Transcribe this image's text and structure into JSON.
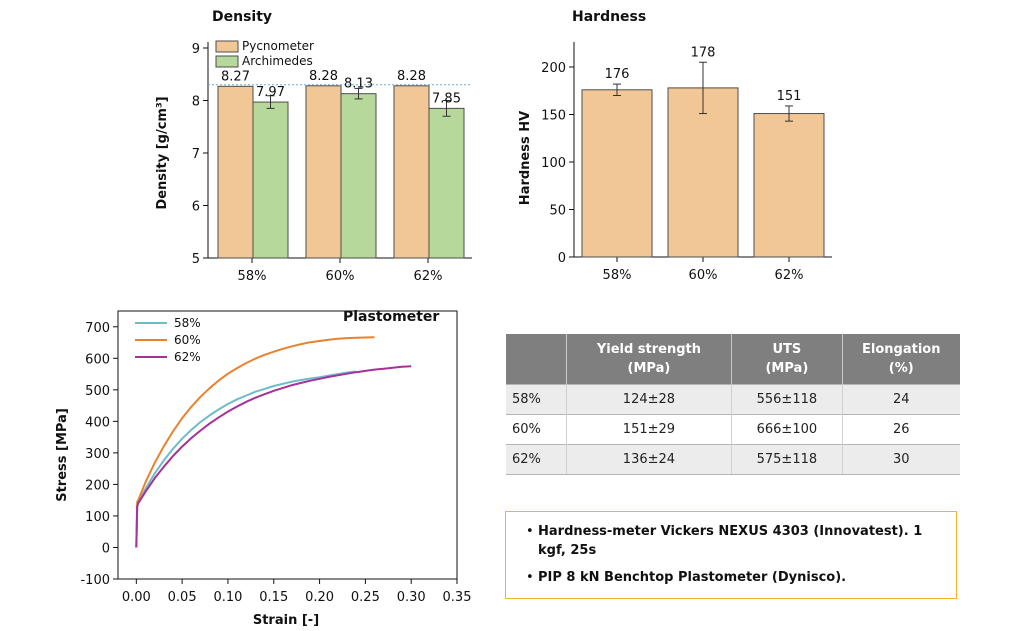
{
  "chart_data": [
    {
      "type": "bar",
      "title": "Density",
      "ylabel": "Density [g/cm³]",
      "categories": [
        "58%",
        "60%",
        "62%"
      ],
      "ylim": [
        5,
        9
      ],
      "yticks": [
        "5",
        "6",
        "7",
        "8",
        "9"
      ],
      "reference_line": 8.3,
      "legend_position": "top-left",
      "series": [
        {
          "name": "Pycnometer",
          "color": "#f1c796",
          "values": [
            8.27,
            8.28,
            8.28
          ],
          "labels": [
            "8.27",
            "8.28",
            "8.28"
          ],
          "errors": [
            0,
            0,
            0
          ]
        },
        {
          "name": "Archimedes",
          "color": "#b6d89a",
          "values": [
            7.97,
            8.13,
            7.85
          ],
          "labels": [
            "7.97",
            "8.13",
            "7.85"
          ],
          "errors": [
            0.12,
            0.1,
            0.15
          ]
        }
      ]
    },
    {
      "type": "bar",
      "title": "Hardness",
      "ylabel": "Hardness HV",
      "categories": [
        "58%",
        "60%",
        "62%"
      ],
      "ylim": [
        0,
        220
      ],
      "yticks": [
        "0",
        "50",
        "100",
        "150",
        "200"
      ],
      "series": [
        {
          "color": "#f1c796",
          "values": [
            176,
            178,
            151
          ],
          "labels": [
            "176",
            "178",
            "151"
          ],
          "errors": [
            6,
            27,
            8
          ]
        }
      ]
    },
    {
      "type": "line",
      "title": "Plastometer",
      "xlabel": "Strain [-]",
      "ylabel": "Stress [MPa]",
      "xlim": [
        -0.02,
        0.35
      ],
      "ylim": [
        -100,
        750
      ],
      "xticks": [
        "0.00",
        "0.05",
        "0.10",
        "0.15",
        "0.20",
        "0.25",
        "0.30",
        "0.35"
      ],
      "yticks": [
        "-100",
        "0",
        "100",
        "200",
        "300",
        "400",
        "500",
        "600",
        "700"
      ],
      "legend_position": "top-left",
      "series": [
        {
          "name": "58%",
          "color": "#6fbcc7",
          "x": [
            0,
            0.001,
            0.002,
            0.01,
            0.02,
            0.03,
            0.04,
            0.05,
            0.06,
            0.07,
            0.08,
            0.09,
            0.1,
            0.11,
            0.12,
            0.13,
            0.14,
            0.15,
            0.16,
            0.17,
            0.18,
            0.19,
            0.2,
            0.21,
            0.22,
            0.23,
            0.24
          ],
          "y": [
            0,
            130,
            140,
            186,
            234,
            276,
            313,
            345,
            373,
            398,
            419,
            438,
            455,
            470,
            482,
            494,
            503,
            512,
            519,
            526,
            531,
            536,
            540,
            545,
            550,
            555,
            558
          ]
        },
        {
          "name": "60%",
          "color": "#e8822e",
          "x": [
            0,
            0.001,
            0.002,
            0.01,
            0.02,
            0.03,
            0.04,
            0.05,
            0.06,
            0.07,
            0.08,
            0.09,
            0.1,
            0.11,
            0.12,
            0.13,
            0.14,
            0.15,
            0.16,
            0.17,
            0.18,
            0.19,
            0.2,
            0.21,
            0.22,
            0.23,
            0.24,
            0.25,
            0.26
          ],
          "y": [
            0,
            145,
            150,
            207,
            268,
            321,
            368,
            410,
            446,
            478,
            505,
            530,
            551,
            569,
            585,
            599,
            611,
            621,
            630,
            638,
            645,
            651,
            655,
            659,
            662,
            664,
            665,
            666,
            667
          ]
        },
        {
          "name": "62%",
          "color": "#a5319a",
          "x": [
            0,
            0.001,
            0.002,
            0.01,
            0.02,
            0.03,
            0.04,
            0.05,
            0.06,
            0.07,
            0.08,
            0.09,
            0.1,
            0.11,
            0.12,
            0.13,
            0.14,
            0.15,
            0.16,
            0.17,
            0.18,
            0.19,
            0.2,
            0.21,
            0.22,
            0.23,
            0.24,
            0.25,
            0.26,
            0.27,
            0.28,
            0.29,
            0.3
          ],
          "y": [
            0,
            130,
            140,
            177,
            219,
            256,
            290,
            320,
            347,
            371,
            393,
            413,
            431,
            447,
            462,
            475,
            486,
            497,
            506,
            515,
            522,
            529,
            535,
            541,
            546,
            551,
            556,
            560,
            564,
            567,
            570,
            573,
            575
          ]
        }
      ]
    }
  ],
  "table": {
    "headers": [
      [
        "",
        ""
      ],
      [
        "Yield strength",
        "(MPa)"
      ],
      [
        "UTS",
        "(MPa)"
      ],
      [
        "Elongation",
        "(%)"
      ]
    ],
    "rows": [
      [
        "58%",
        "124±28",
        "556±118",
        "24"
      ],
      [
        "60%",
        "151±29",
        "666±100",
        "26"
      ],
      [
        "62%",
        "136±24",
        "575±118",
        "30"
      ]
    ]
  },
  "notes": [
    "Hardness-meter Vickers NEXUS 4303 (Innovatest). 1 kgf, 25s",
    "PIP 8 kN Benchtop Plastometer (Dynisco)."
  ]
}
